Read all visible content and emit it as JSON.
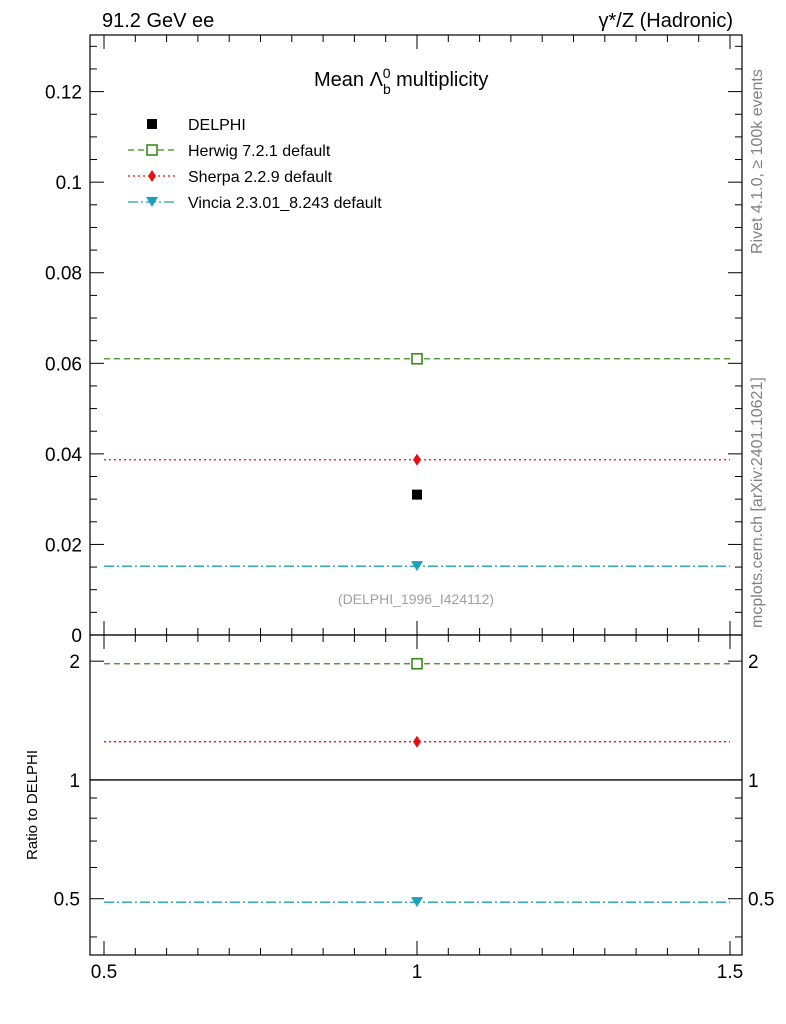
{
  "header": {
    "left": "91.2 GeV ee",
    "right": "γ*/Z (Hadronic)"
  },
  "side_labels": {
    "rivet": "Rivet 4.1.0, ≥ 100k events",
    "mcplots": "mcplots.cern.ch [arXiv:2401.10621]"
  },
  "chart_data": [
    {
      "type": "scatter",
      "title_main": "Mean Λ",
      "title_sub": "b",
      "title_sup": "0",
      "title_rest": " multiplicity",
      "analysis_id": "(DELPHI_1996_I424112)",
      "x": [
        1
      ],
      "xlim": [
        0.5,
        1.5
      ],
      "ylim": [
        0,
        0.1325
      ],
      "y_ticks": [
        0,
        0.02,
        0.04,
        0.06,
        0.08,
        0.1,
        0.12
      ],
      "y_tick_labels": [
        "0",
        "0.02",
        "0.04",
        "0.06",
        "0.08",
        "0.1",
        "0.12"
      ],
      "series": [
        {
          "name": "DELPHI",
          "kind": "data",
          "values": [
            0.031
          ],
          "color": "#000000",
          "marker": "square-filled"
        },
        {
          "name": "Herwig 7.2.1 default",
          "kind": "mc",
          "values": [
            0.061
          ],
          "color": "#3a8a1a",
          "marker": "square-open",
          "dash": "6,4"
        },
        {
          "name": "Sherpa 2.2.9 default",
          "kind": "mc",
          "values": [
            0.0387
          ],
          "color": "#e81010",
          "marker": "diamond",
          "dash": "2,3"
        },
        {
          "name": "Vincia 2.3.01_8.243 default",
          "kind": "mc",
          "values": [
            0.0152
          ],
          "color": "#1aa0b8",
          "marker": "triangle-down",
          "dash": "10,3,2,3"
        }
      ]
    },
    {
      "type": "scatter",
      "ylabel": "Ratio to DELPHI",
      "x": [
        1
      ],
      "xlim": [
        0.5,
        1.5
      ],
      "ylim": [
        0.36,
        2.33
      ],
      "x_ticks": [
        0.5,
        1,
        1.5
      ],
      "x_tick_labels": [
        "0.5",
        "1",
        "1.5"
      ],
      "y_ticks": [
        0.5,
        1,
        2
      ],
      "y_tick_labels": [
        "0.5",
        "1",
        "2"
      ],
      "reference": 1,
      "series": [
        {
          "name": "Herwig 7.2.1 default",
          "values": [
            1.97
          ],
          "color": "#3a8a1a",
          "marker": "square-open",
          "dash": "6,4"
        },
        {
          "name": "Sherpa 2.2.9 default",
          "values": [
            1.25
          ],
          "color": "#e81010",
          "marker": "diamond",
          "dash": "2,3"
        },
        {
          "name": "Vincia 2.3.01_8.243 default",
          "values": [
            0.49
          ],
          "color": "#1aa0b8",
          "marker": "triangle-down",
          "dash": "10,3,2,3"
        }
      ]
    }
  ]
}
